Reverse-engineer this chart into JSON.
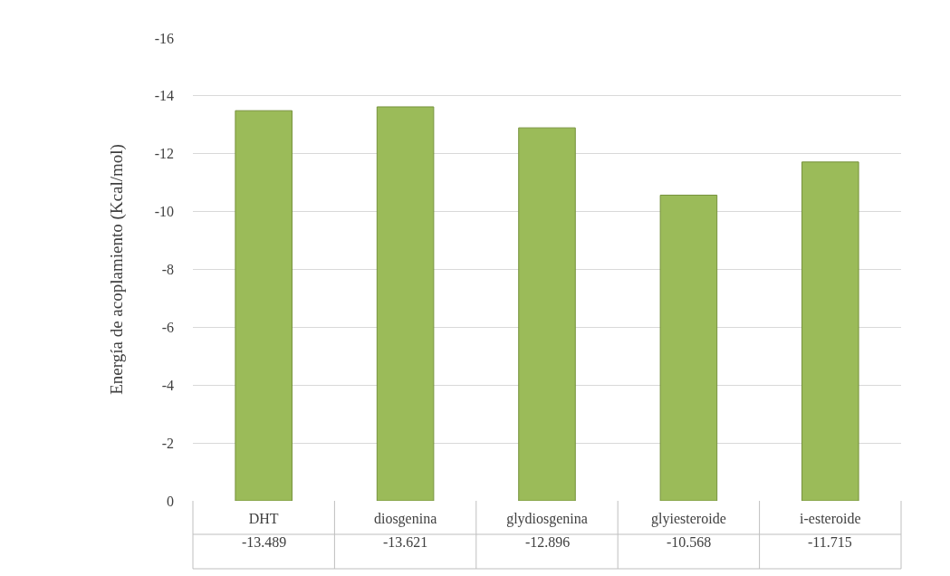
{
  "chart_data": {
    "type": "bar",
    "ylabel": "Energía de acoplamiento (Kcal/mol)",
    "categories": [
      "DHT",
      "diosgenina",
      "glydiosgenina",
      "glyiesteroide",
      "i-esteroide"
    ],
    "series": [
      {
        "color": "#9bbb59",
        "values": [
          -13.489,
          -13.621,
          -12.896,
          -10.568,
          -11.715
        ]
      }
    ],
    "ylim": [
      0,
      -16
    ],
    "yticks": [
      0,
      -2,
      -4,
      -6,
      -8,
      -10,
      -12,
      -14,
      -16
    ],
    "grid": "y",
    "data_labels": true
  }
}
